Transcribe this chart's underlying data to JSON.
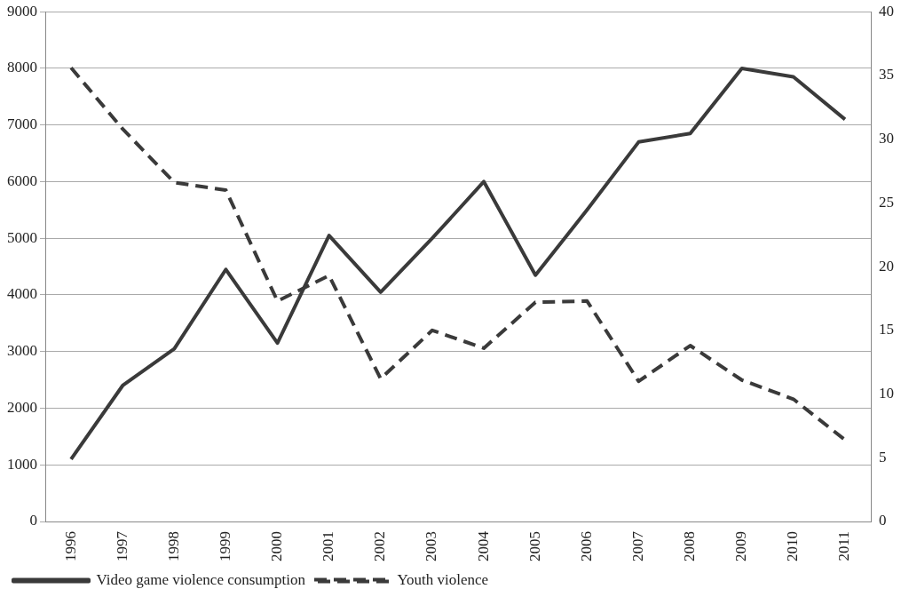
{
  "chart_data": {
    "type": "line",
    "categories": [
      "1996",
      "1997",
      "1998",
      "1999",
      "2000",
      "2001",
      "2002",
      "2003",
      "2004",
      "2005",
      "2006",
      "2007",
      "2008",
      "2009",
      "2010",
      "2011"
    ],
    "series": [
      {
        "name": "Video game violence consumption",
        "color": "#3a3a3a",
        "line_style": "solid",
        "values": [
          1100,
          2400,
          3050,
          4450,
          3150,
          5050,
          4050,
          5000,
          6000,
          4350,
          5500,
          6700,
          6850,
          8000,
          7850,
          7100
        ]
      },
      {
        "name": "Youth violence",
        "color": "#3a3a3a",
        "line_style": "dashed",
        "axis": "y2",
        "values": [
          35.6,
          30.8,
          26.6,
          26.0,
          17.3,
          19.3,
          11.2,
          15.0,
          13.6,
          17.2,
          17.3,
          11.0,
          13.8,
          11.1,
          9.6,
          6.4
        ]
      }
    ],
    "ylim": [
      0,
      9000
    ],
    "yticks": [
      0,
      1000,
      2000,
      3000,
      4000,
      5000,
      6000,
      7000,
      8000,
      9000
    ],
    "y2lim": [
      0,
      40
    ],
    "y2ticks": [
      0,
      5,
      10,
      15,
      20,
      25,
      30,
      35,
      40
    ],
    "grid": "y",
    "legend": "bottom",
    "marker": "none"
  }
}
